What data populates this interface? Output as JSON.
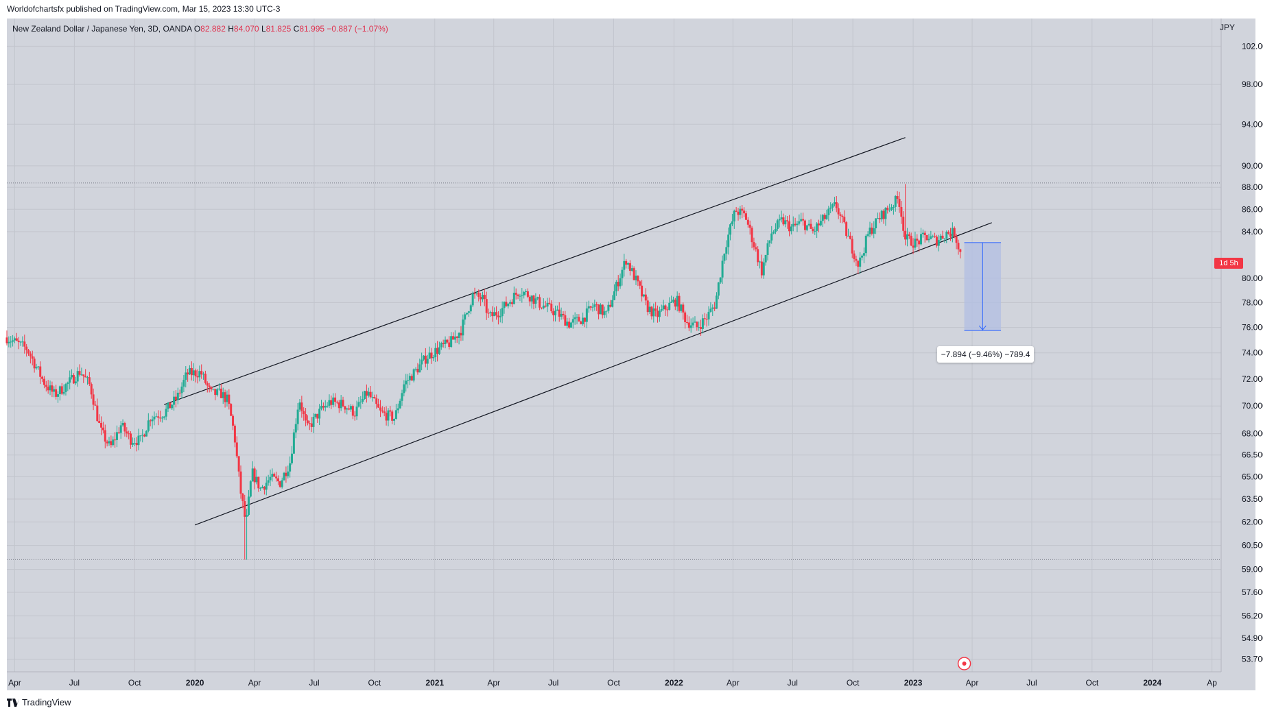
{
  "header": {
    "publisher_line": "Worldofchartsfx published on TradingView.com, Mar 15, 2023 13:30 UTC-3"
  },
  "legend": {
    "symbol": "New Zealand Dollar / Japanese Yen, 3D, OANDA",
    "o_label": "O",
    "o_value": "82.882",
    "h_label": "H",
    "h_value": "84.070",
    "l_label": "L",
    "l_value": "81.825",
    "c_label": "C",
    "c_value": "81.995",
    "change": "−0.887 (−1.07%)"
  },
  "currency": "JPY",
  "price_tag": "1d 5h",
  "measure_label": "−7.894 (−9.46%) −789.4",
  "footer": {
    "brand": "TradingView"
  },
  "colors": {
    "up": "#22ab94",
    "down": "#f23645",
    "background": "#d1d4dc",
    "grid": "#c2c5cd",
    "measure_fill": "#b2bfe3",
    "measure_line": "#2962ff"
  },
  "chart_data": {
    "type": "candlestick",
    "symbol": "NZDJPY",
    "interval": "3D",
    "y_axis_scale": "log",
    "ylim": [
      53.0,
      105.0
    ],
    "xlim": [
      "2019-03-20",
      "2024-04-15"
    ],
    "y_ticks": [
      "102.000",
      "98.000",
      "94.000",
      "90.000",
      "88.000",
      "86.000",
      "84.000",
      "80.000",
      "78.000",
      "76.000",
      "74.000",
      "72.000",
      "70.000",
      "68.000",
      "66.500",
      "65.000",
      "63.500",
      "62.000",
      "60.500",
      "59.000",
      "57.600",
      "56.200",
      "54.900",
      "53.700"
    ],
    "x_ticks": [
      {
        "label": "Apr",
        "date": "2019-04-01",
        "bold": false
      },
      {
        "label": "Jul",
        "date": "2019-07-01",
        "bold": false
      },
      {
        "label": "Oct",
        "date": "2019-10-01",
        "bold": false
      },
      {
        "label": "2020",
        "date": "2020-01-01",
        "bold": true
      },
      {
        "label": "Apr",
        "date": "2020-04-01",
        "bold": false
      },
      {
        "label": "Jul",
        "date": "2020-07-01",
        "bold": false
      },
      {
        "label": "Oct",
        "date": "2020-10-01",
        "bold": false
      },
      {
        "label": "2021",
        "date": "2021-01-01",
        "bold": true
      },
      {
        "label": "Apr",
        "date": "2021-04-01",
        "bold": false
      },
      {
        "label": "Jul",
        "date": "2021-07-01",
        "bold": false
      },
      {
        "label": "Oct",
        "date": "2021-10-01",
        "bold": false
      },
      {
        "label": "2022",
        "date": "2022-01-01",
        "bold": true
      },
      {
        "label": "Apr",
        "date": "2022-04-01",
        "bold": false
      },
      {
        "label": "Jul",
        "date": "2022-07-01",
        "bold": false
      },
      {
        "label": "Oct",
        "date": "2022-10-01",
        "bold": false
      },
      {
        "label": "2023",
        "date": "2023-01-01",
        "bold": true
      },
      {
        "label": "Apr",
        "date": "2023-04-01",
        "bold": false
      },
      {
        "label": "Jul",
        "date": "2023-07-01",
        "bold": false
      },
      {
        "label": "Oct",
        "date": "2023-10-01",
        "bold": false
      },
      {
        "label": "2024",
        "date": "2024-01-01",
        "bold": true
      },
      {
        "label": "Ap",
        "date": "2024-04-01",
        "bold": false
      }
    ],
    "close_path": [
      [
        "2019-03-20",
        75.2
      ],
      [
        "2019-04-20",
        74.3
      ],
      [
        "2019-05-15",
        71.8
      ],
      [
        "2019-06-01",
        70.8
      ],
      [
        "2019-06-20",
        71.6
      ],
      [
        "2019-07-10",
        72.6
      ],
      [
        "2019-07-25",
        71.5
      ],
      [
        "2019-08-10",
        68.2
      ],
      [
        "2019-08-25",
        67.0
      ],
      [
        "2019-09-10",
        68.6
      ],
      [
        "2019-09-25",
        67.6
      ],
      [
        "2019-10-10",
        67.5
      ],
      [
        "2019-10-25",
        69.2
      ],
      [
        "2019-11-15",
        69.5
      ],
      [
        "2019-12-05",
        70.6
      ],
      [
        "2019-12-20",
        72.4
      ],
      [
        "2020-01-10",
        72.5
      ],
      [
        "2020-01-25",
        70.9
      ],
      [
        "2020-02-10",
        70.9
      ],
      [
        "2020-02-20",
        70.4
      ],
      [
        "2020-03-01",
        68.0
      ],
      [
        "2020-03-10",
        64.2
      ],
      [
        "2020-03-19",
        61.8
      ],
      [
        "2020-03-28",
        65.3
      ],
      [
        "2020-04-10",
        64.2
      ],
      [
        "2020-04-25",
        64.9
      ],
      [
        "2020-05-10",
        64.6
      ],
      [
        "2020-05-25",
        66.0
      ],
      [
        "2020-06-08",
        70.6
      ],
      [
        "2020-06-20",
        68.3
      ],
      [
        "2020-07-10",
        69.6
      ],
      [
        "2020-07-25",
        70.3
      ],
      [
        "2020-08-15",
        70.1
      ],
      [
        "2020-09-01",
        69.5
      ],
      [
        "2020-09-20",
        71.0
      ],
      [
        "2020-10-10",
        69.5
      ],
      [
        "2020-11-01",
        69.1
      ],
      [
        "2020-11-15",
        71.6
      ],
      [
        "2020-12-01",
        72.5
      ],
      [
        "2020-12-20",
        73.7
      ],
      [
        "2021-01-10",
        74.4
      ],
      [
        "2021-01-25",
        74.8
      ],
      [
        "2021-02-10",
        75.8
      ],
      [
        "2021-02-28",
        78.6
      ],
      [
        "2021-03-15",
        78.3
      ],
      [
        "2021-03-25",
        76.8
      ],
      [
        "2021-04-10",
        77.3
      ],
      [
        "2021-04-25",
        78.1
      ],
      [
        "2021-05-10",
        79.0
      ],
      [
        "2021-05-25",
        78.6
      ],
      [
        "2021-06-10",
        77.9
      ],
      [
        "2021-06-25",
        77.5
      ],
      [
        "2021-07-10",
        77.0
      ],
      [
        "2021-07-25",
        76.3
      ],
      [
        "2021-08-15",
        76.7
      ],
      [
        "2021-09-01",
        77.8
      ],
      [
        "2021-09-20",
        77.0
      ],
      [
        "2021-10-10",
        80.1
      ],
      [
        "2021-10-20",
        81.6
      ],
      [
        "2021-11-05",
        79.7
      ],
      [
        "2021-11-20",
        77.7
      ],
      [
        "2021-12-05",
        76.9
      ],
      [
        "2021-12-20",
        77.6
      ],
      [
        "2022-01-05",
        78.2
      ],
      [
        "2022-01-20",
        76.5
      ],
      [
        "2022-02-05",
        76.0
      ],
      [
        "2022-02-20",
        76.8
      ],
      [
        "2022-03-05",
        77.9
      ],
      [
        "2022-03-20",
        82.7
      ],
      [
        "2022-04-05",
        85.9
      ],
      [
        "2022-04-20",
        85.4
      ],
      [
        "2022-05-05",
        82.5
      ],
      [
        "2022-05-15",
        80.6
      ],
      [
        "2022-05-30",
        83.9
      ],
      [
        "2022-06-15",
        85.0
      ],
      [
        "2022-06-30",
        84.3
      ],
      [
        "2022-07-15",
        84.9
      ],
      [
        "2022-08-01",
        84.0
      ],
      [
        "2022-08-20",
        85.3
      ],
      [
        "2022-09-05",
        86.4
      ],
      [
        "2022-09-25",
        83.3
      ],
      [
        "2022-10-10",
        81.1
      ],
      [
        "2022-10-25",
        83.9
      ],
      [
        "2022-11-10",
        85.2
      ],
      [
        "2022-11-25",
        86.1
      ],
      [
        "2022-12-10",
        87.0
      ],
      [
        "2022-12-20",
        83.4
      ],
      [
        "2023-01-05",
        83.0
      ],
      [
        "2023-01-20",
        83.6
      ],
      [
        "2023-02-05",
        83.2
      ],
      [
        "2023-02-20",
        83.9
      ],
      [
        "2023-03-05",
        83.9
      ],
      [
        "2023-03-15",
        81.995
      ]
    ],
    "channel_upper": {
      "start": [
        "2019-11-15",
        70.1
      ],
      "end": [
        "2022-12-20",
        92.7
      ]
    },
    "channel_lower": {
      "start": [
        "2020-01-01",
        61.8
      ],
      "end": [
        "2023-05-01",
        84.8
      ]
    },
    "horizontal_levels": [
      88.4,
      59.6
    ],
    "measure": {
      "x_start": "2023-03-20",
      "x_end": "2023-05-15",
      "y_top": 83.05,
      "y_bottom": 75.75,
      "change": -7.894,
      "percent": -9.46,
      "pips": -789.4
    }
  }
}
